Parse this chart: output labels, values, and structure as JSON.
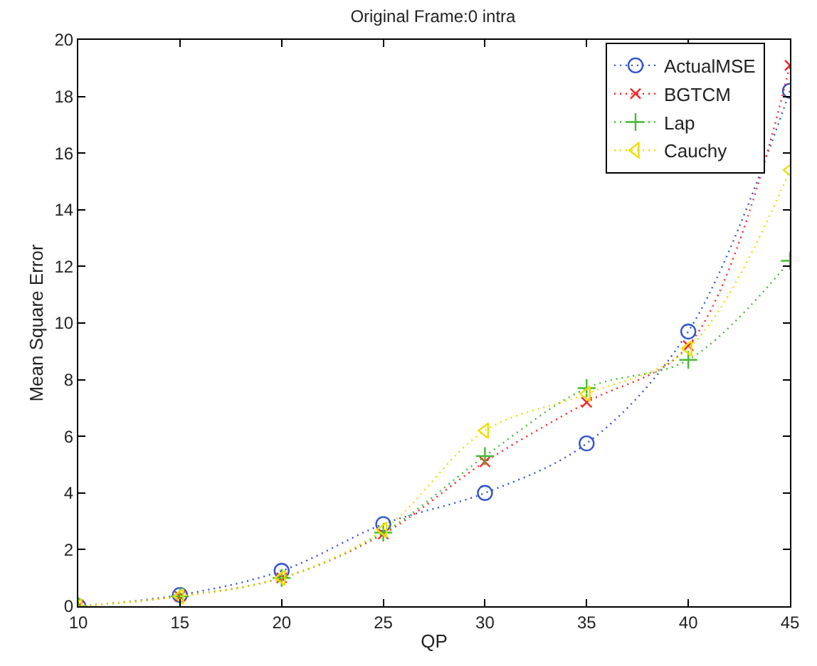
{
  "chart_data": {
    "type": "line",
    "title": "Original Frame:0 intra",
    "xlabel": "QP",
    "ylabel": "Mean Square Error",
    "x": [
      10,
      15,
      20,
      25,
      30,
      35,
      40,
      45
    ],
    "series": [
      {
        "name": "ActualMSE",
        "color": "#3355cc",
        "marker": "circle",
        "values": [
          0,
          0.4,
          1.25,
          2.9,
          4.0,
          5.75,
          9.7,
          18.2
        ]
      },
      {
        "name": "BGTCM",
        "color": "#ff2222",
        "marker": "x",
        "values": [
          0,
          0.35,
          1.0,
          2.55,
          5.1,
          7.2,
          9.2,
          19.1
        ]
      },
      {
        "name": "Lap",
        "color": "#44bb33",
        "marker": "cross",
        "values": [
          0,
          0.35,
          1.0,
          2.6,
          5.3,
          7.7,
          8.7,
          12.2
        ]
      },
      {
        "name": "Cauchy",
        "color": "#eedd00",
        "marker": "triangle-left",
        "values": [
          0,
          0.35,
          1.0,
          2.7,
          6.2,
          7.5,
          9.1,
          15.4
        ]
      }
    ],
    "xlim": [
      10,
      45
    ],
    "xticks": [
      10,
      15,
      20,
      25,
      30,
      35,
      40,
      45
    ],
    "ylim": [
      0,
      20
    ],
    "yticks": [
      0,
      2,
      4,
      6,
      8,
      10,
      12,
      14,
      16,
      18,
      20
    ],
    "legend": "top right",
    "line_style": "dotted"
  }
}
